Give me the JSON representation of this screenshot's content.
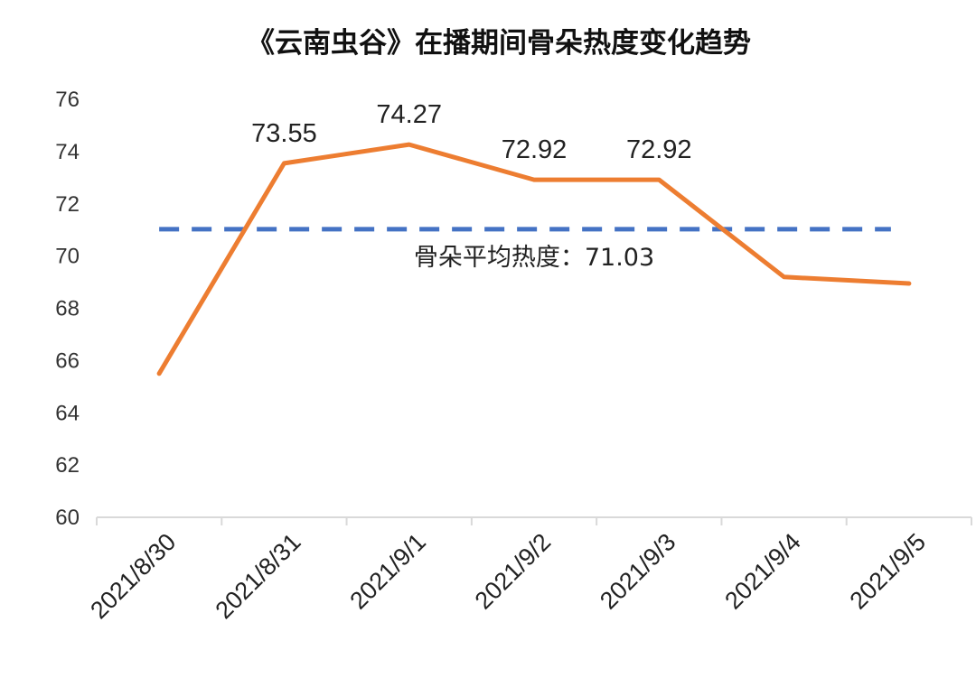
{
  "chart_data": {
    "type": "line",
    "title": "《云南虫谷》在播期间骨朵热度变化趋势",
    "xlabel": "",
    "ylabel": "",
    "categories": [
      "2021/8/30",
      "2021/8/31",
      "2021/9/1",
      "2021/9/2",
      "2021/9/3",
      "2021/9/4",
      "2021/9/5"
    ],
    "series": [
      {
        "values": [
          65.5,
          73.55,
          74.27,
          72.92,
          72.92,
          69.2,
          68.95
        ],
        "color": "#ED7D31"
      }
    ],
    "data_labels": [
      "",
      "73.55",
      "74.27",
      "72.92",
      "72.92",
      "",
      ""
    ],
    "ylim": [
      60,
      76
    ],
    "yticks": [
      "60",
      "62",
      "64",
      "66",
      "68",
      "70",
      "72",
      "74",
      "76"
    ],
    "grid": false,
    "reference_line": {
      "value": 71.03,
      "label": "骨朵平均热度：71.03",
      "color": "#4472C4",
      "style": "dashed"
    }
  }
}
